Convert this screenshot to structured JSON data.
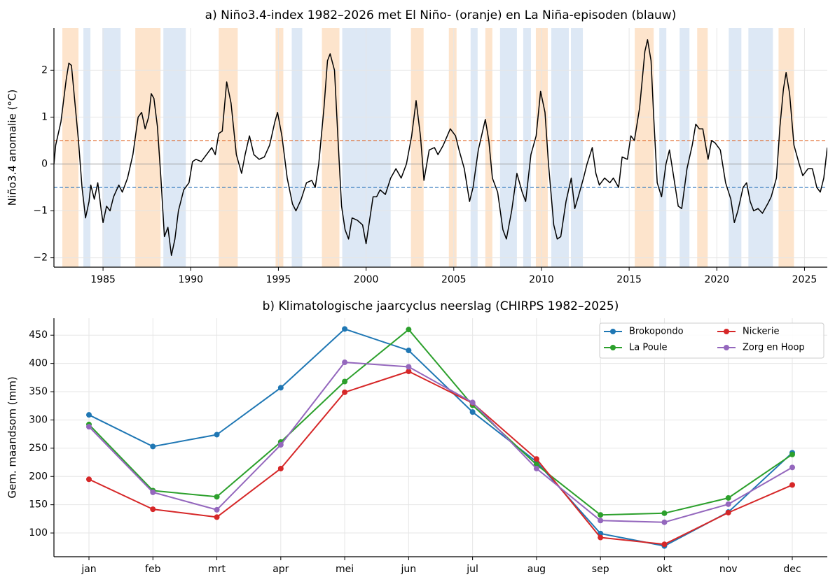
{
  "chart_data": [
    {
      "type": "line",
      "title": "a) Niño3.4-index 1982–2026 met El Niño- (oranje) en La Niña-episoden (blauw)",
      "ylabel": "Niño3.4 anomalie (°C)",
      "xlim": [
        1982.2,
        2026.3
      ],
      "xticks": [
        1985,
        1990,
        1995,
        2000,
        2005,
        2010,
        2015,
        2020,
        2025
      ],
      "ylim": [
        -2.2,
        2.9
      ],
      "yticks": [
        {
          "value": -2,
          "label": "−2"
        },
        {
          "value": -1,
          "label": "−1"
        },
        0,
        1,
        2
      ],
      "grid": true,
      "color": "#000000",
      "shaded": [
        {
          "color": "#fde4cc",
          "ranges": [
            [
              1982.68,
              1983.6
            ],
            [
              1986.84,
              1988.28
            ],
            [
              1991.6,
              1992.68
            ],
            [
              1994.84,
              1995.28
            ],
            [
              1997.48,
              1998.48
            ],
            [
              2002.56,
              2003.28
            ],
            [
              2004.72,
              2005.16
            ],
            [
              2006.8,
              2007.2
            ],
            [
              2009.68,
              2010.36
            ],
            [
              2015.32,
              2016.4
            ],
            [
              2018.88,
              2019.48
            ],
            [
              2023.52,
              2024.4
            ]
          ]
        },
        {
          "color": "#dde8f5",
          "ranges": [
            [
              1983.88,
              1984.28
            ],
            [
              1984.96,
              1986.0
            ],
            [
              1988.44,
              1989.72
            ],
            [
              1995.76,
              1996.36
            ],
            [
              1998.64,
              2001.4
            ],
            [
              2005.96,
              2006.36
            ],
            [
              2007.64,
              2008.6
            ],
            [
              2008.96,
              2009.4
            ],
            [
              2010.56,
              2011.56
            ],
            [
              2011.68,
              2012.36
            ],
            [
              2016.72,
              2017.12
            ],
            [
              2017.88,
              2018.44
            ],
            [
              2020.68,
              2021.4
            ],
            [
              2021.8,
              2023.2
            ]
          ]
        }
      ],
      "hlines": [
        {
          "value": 0,
          "color": "#999999",
          "dash": false
        },
        {
          "value": 0.5,
          "color": "#e0692a",
          "dash": true
        },
        {
          "value": -0.5,
          "color": "#3a7dbf",
          "dash": true
        }
      ],
      "x": [
        1982.2,
        1982.3,
        1982.6,
        1982.9,
        1983.05,
        1983.2,
        1983.4,
        1983.6,
        1983.8,
        1984.0,
        1984.2,
        1984.3,
        1984.5,
        1984.7,
        1984.9,
        1985.0,
        1985.2,
        1985.4,
        1985.6,
        1985.9,
        1986.1,
        1986.4,
        1986.7,
        1987.0,
        1987.2,
        1987.4,
        1987.6,
        1987.75,
        1987.9,
        1988.1,
        1988.3,
        1988.5,
        1988.7,
        1988.9,
        1989.1,
        1989.3,
        1989.6,
        1989.9,
        1990.1,
        1990.3,
        1990.6,
        1990.9,
        1991.2,
        1991.4,
        1991.6,
        1991.8,
        1992.05,
        1992.3,
        1992.6,
        1992.9,
        1993.1,
        1993.35,
        1993.6,
        1993.9,
        1994.2,
        1994.5,
        1994.8,
        1994.95,
        1995.2,
        1995.5,
        1995.8,
        1996.0,
        1996.3,
        1996.6,
        1996.9,
        1997.1,
        1997.3,
        1997.6,
        1997.8,
        1997.95,
        1998.2,
        1998.4,
        1998.6,
        1998.8,
        1999.0,
        1999.2,
        1999.5,
        1999.8,
        2000.0,
        2000.2,
        2000.4,
        2000.6,
        2000.8,
        2001.1,
        2001.4,
        2001.7,
        2002.0,
        2002.3,
        2002.6,
        2002.85,
        2003.1,
        2003.3,
        2003.6,
        2003.9,
        2004.1,
        2004.4,
        2004.8,
        2005.1,
        2005.3,
        2005.6,
        2005.9,
        2006.1,
        2006.4,
        2006.8,
        2007.0,
        2007.2,
        2007.5,
        2007.8,
        2008.0,
        2008.3,
        2008.6,
        2008.9,
        2009.1,
        2009.4,
        2009.7,
        2009.95,
        2010.2,
        2010.4,
        2010.7,
        2010.9,
        2011.1,
        2011.4,
        2011.7,
        2011.9,
        2012.1,
        2012.4,
        2012.6,
        2012.9,
        2013.1,
        2013.3,
        2013.6,
        2013.9,
        2014.1,
        2014.4,
        2014.6,
        2014.9,
        2015.1,
        2015.3,
        2015.6,
        2015.9,
        2016.05,
        2016.25,
        2016.4,
        2016.6,
        2016.85,
        2017.1,
        2017.3,
        2017.55,
        2017.8,
        2018.0,
        2018.3,
        2018.6,
        2018.8,
        2019.0,
        2019.2,
        2019.5,
        2019.7,
        2019.9,
        2020.2,
        2020.5,
        2020.8,
        2021.0,
        2021.2,
        2021.5,
        2021.7,
        2021.9,
        2022.1,
        2022.35,
        2022.6,
        2022.9,
        2023.1,
        2023.4,
        2023.6,
        2023.8,
        2023.95,
        2024.15,
        2024.4,
        2024.7,
        2024.9,
        2025.2,
        2025.45,
        2025.7,
        2025.9,
        2026.1,
        2026.3
      ],
      "values": [
        0.0,
        0.4,
        0.9,
        1.8,
        2.15,
        2.1,
        1.3,
        0.5,
        -0.5,
        -1.15,
        -0.8,
        -0.45,
        -0.75,
        -0.4,
        -1.0,
        -1.25,
        -0.9,
        -1.0,
        -0.7,
        -0.45,
        -0.6,
        -0.3,
        0.2,
        1.0,
        1.1,
        0.75,
        1.0,
        1.5,
        1.4,
        0.8,
        -0.3,
        -1.55,
        -1.35,
        -1.95,
        -1.6,
        -1.0,
        -0.55,
        -0.4,
        0.05,
        0.1,
        0.05,
        0.2,
        0.35,
        0.2,
        0.65,
        0.7,
        1.75,
        1.3,
        0.2,
        -0.2,
        0.2,
        0.6,
        0.2,
        0.1,
        0.15,
        0.4,
        0.9,
        1.1,
        0.6,
        -0.3,
        -0.85,
        -1.0,
        -0.75,
        -0.4,
        -0.35,
        -0.5,
        0.0,
        1.2,
        2.2,
        2.35,
        2.0,
        0.5,
        -0.9,
        -1.4,
        -1.6,
        -1.15,
        -1.2,
        -1.3,
        -1.7,
        -1.2,
        -0.7,
        -0.7,
        -0.55,
        -0.65,
        -0.3,
        -0.1,
        -0.3,
        0.0,
        0.6,
        1.35,
        0.6,
        -0.35,
        0.3,
        0.35,
        0.2,
        0.4,
        0.75,
        0.6,
        0.3,
        -0.1,
        -0.8,
        -0.5,
        0.3,
        0.95,
        0.5,
        -0.3,
        -0.6,
        -1.4,
        -1.6,
        -1.0,
        -0.2,
        -0.6,
        -0.8,
        0.2,
        0.6,
        1.55,
        1.1,
        0.0,
        -1.3,
        -1.6,
        -1.55,
        -0.8,
        -0.3,
        -0.95,
        -0.7,
        -0.3,
        0.0,
        0.35,
        -0.2,
        -0.45,
        -0.3,
        -0.4,
        -0.3,
        -0.5,
        0.15,
        0.1,
        0.6,
        0.5,
        1.2,
        2.4,
        2.65,
        2.2,
        1.0,
        -0.4,
        -0.7,
        0.0,
        0.3,
        -0.3,
        -0.9,
        -0.95,
        -0.1,
        0.4,
        0.85,
        0.75,
        0.75,
        0.1,
        0.5,
        0.45,
        0.3,
        -0.4,
        -0.75,
        -1.25,
        -1.0,
        -0.5,
        -0.4,
        -0.8,
        -1.0,
        -0.95,
        -1.05,
        -0.85,
        -0.7,
        -0.3,
        0.8,
        1.6,
        1.95,
        1.5,
        0.4,
        0.0,
        -0.25,
        -0.1,
        -0.1,
        -0.5,
        -0.6,
        -0.3,
        0.35
      ]
    },
    {
      "type": "line-markers",
      "title": "b) Klimatologische jaarcyclus neerslag (CHIRPS 1982–2025)",
      "ylabel": "Gem. maandsom (mm)",
      "categories": [
        "jan",
        "feb",
        "mrt",
        "apr",
        "mei",
        "jun",
        "jul",
        "aug",
        "sep",
        "okt",
        "nov",
        "dec"
      ],
      "ylim": [
        58,
        480
      ],
      "yticks": [
        100,
        150,
        200,
        250,
        300,
        350,
        400,
        450
      ],
      "grid": true,
      "legend": "upper right",
      "series": [
        {
          "name": "Brokopondo",
          "color": "#1f77b4",
          "values": [
            309,
            253,
            274,
            357,
            461,
            423,
            314,
            226,
            99,
            77,
            137,
            242
          ]
        },
        {
          "name": "La Poule",
          "color": "#2ca02c",
          "values": [
            292,
            175,
            164,
            261,
            368,
            460,
            326,
            221,
            132,
            135,
            162,
            239
          ]
        },
        {
          "name": "Nickerie",
          "color": "#d62728",
          "values": [
            195,
            142,
            128,
            214,
            349,
            386,
            330,
            231,
            92,
            80,
            136,
            185
          ]
        },
        {
          "name": "Zorg en Hoop",
          "color": "#9467bd",
          "values": [
            288,
            172,
            141,
            256,
            402,
            394,
            331,
            214,
            122,
            119,
            151,
            216
          ]
        }
      ]
    }
  ]
}
